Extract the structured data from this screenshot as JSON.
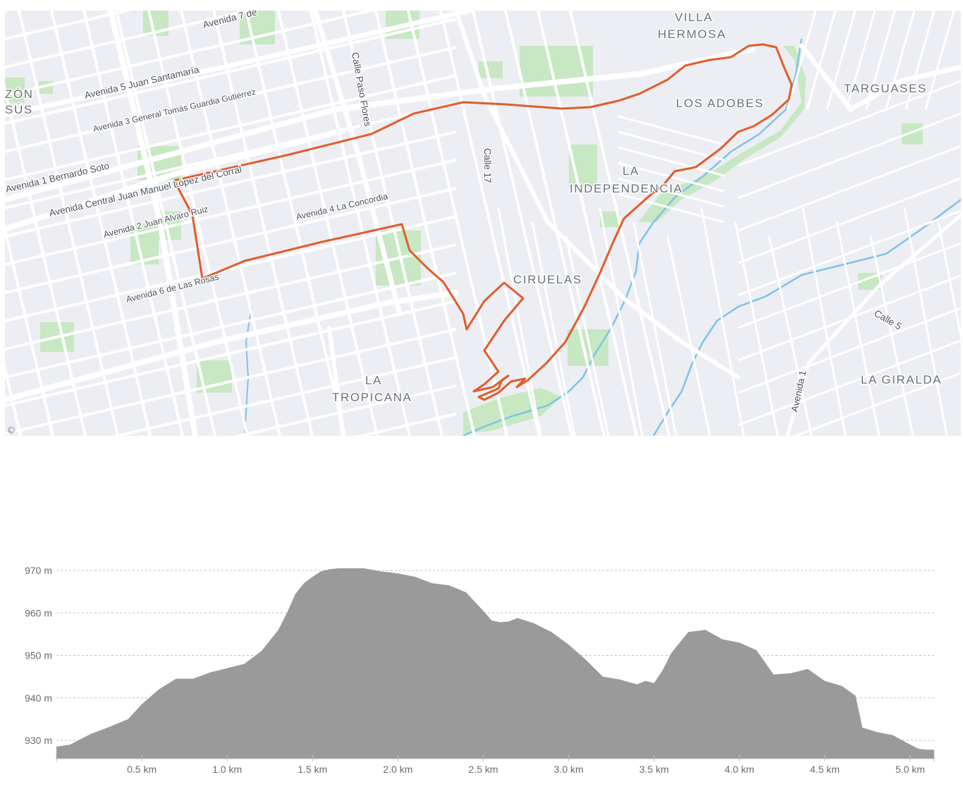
{
  "map": {
    "neighborhoods": [
      "VILLA",
      "HERMOSA",
      "LOS ADOBES",
      "TARGUASES",
      "LA",
      "INDEPENDENCIA",
      "CIRUELAS",
      "LA",
      "TROPICANA",
      "LA GIRALDA",
      "ZÓN",
      "SÚS"
    ],
    "streets": [
      "Avenida 7 de",
      "Avenida 5 Juan Santamaría",
      "Avenida 3 General Tomás Guardia Gutiérrez",
      "Calle Paso Flores",
      "Avenida 1 Bernardo Soto",
      "Avenida Central Juan Manuel López del Corral",
      "Calle 17",
      "Avenida 2 Juan Alvaro Ruiz",
      "Avenida 4 La Concordia",
      "Avenida 6 de Las Rosas",
      "Calle 5",
      "Avenida 1"
    ],
    "attribution_symbol": "©",
    "route_color": "#e05d2b",
    "water_color": "#7fc2e8",
    "park_color": "#c7e8c2",
    "road_color": "#ffffff",
    "base_color": "#eceef3"
  },
  "chart_data": {
    "type": "area",
    "title": "",
    "xlabel": "",
    "ylabel": "",
    "x_unit": "km",
    "y_unit": "m",
    "xlim": [
      0,
      5.14
    ],
    "ylim": [
      924,
      972
    ],
    "y_ticks": [
      930,
      940,
      950,
      960,
      970
    ],
    "y_tick_labels": [
      "930 m",
      "940 m",
      "950 m",
      "960 m",
      "970 m"
    ],
    "x_ticks": [
      0.5,
      1.0,
      1.5,
      2.0,
      2.5,
      3.0,
      3.5,
      4.0,
      4.5,
      5.0
    ],
    "x_tick_labels": [
      "0.5 km",
      "1.0 km",
      "1.5 km",
      "2.0 km",
      "2.5 km",
      "3.0 km",
      "3.5 km",
      "4.0 km",
      "4.5 km",
      "5.0 km"
    ],
    "grid": "horizontal dashed",
    "fill_color": "#9a9a9a",
    "series": [
      {
        "x": [
          0,
          0.08,
          0.2,
          0.3,
          0.42,
          0.5,
          0.6,
          0.7,
          0.8,
          0.9,
          1.0,
          1.1,
          1.2,
          1.3,
          1.35,
          1.4,
          1.45,
          1.5,
          1.55,
          1.6,
          1.65,
          1.7,
          1.8,
          1.9,
          2.0,
          2.1,
          2.2,
          2.3,
          2.4,
          2.5,
          2.55,
          2.6,
          2.65,
          2.7,
          2.8,
          2.9,
          3.0,
          3.1,
          3.2,
          3.3,
          3.4,
          3.45,
          3.5,
          3.55,
          3.6,
          3.7,
          3.8,
          3.9,
          4.0,
          4.1,
          4.2,
          4.3,
          4.4,
          4.5,
          4.6,
          4.68,
          4.72,
          4.8,
          4.9,
          5.0,
          5.05,
          5.1,
          5.14
        ],
        "y": [
          928.5,
          929,
          931.5,
          933,
          935,
          938.5,
          942,
          944.5,
          944.5,
          946,
          947,
          948,
          951,
          956,
          960,
          964.5,
          967,
          968.5,
          969.8,
          970.3,
          970.5,
          970.5,
          970.5,
          969.8,
          969.3,
          968.5,
          967,
          966.5,
          964.8,
          960.5,
          958.2,
          957.8,
          958.0,
          958.8,
          957.5,
          955.5,
          952.5,
          949,
          945,
          944.3,
          943.2,
          944.0,
          943.5,
          946.5,
          950.5,
          955.5,
          956.0,
          953.8,
          953.0,
          951.2,
          945.5,
          945.8,
          946.8,
          944.0,
          942.8,
          940.5,
          933.0,
          932.0,
          931.2,
          929.0,
          928.0,
          927.8,
          927.8
        ]
      }
    ]
  }
}
